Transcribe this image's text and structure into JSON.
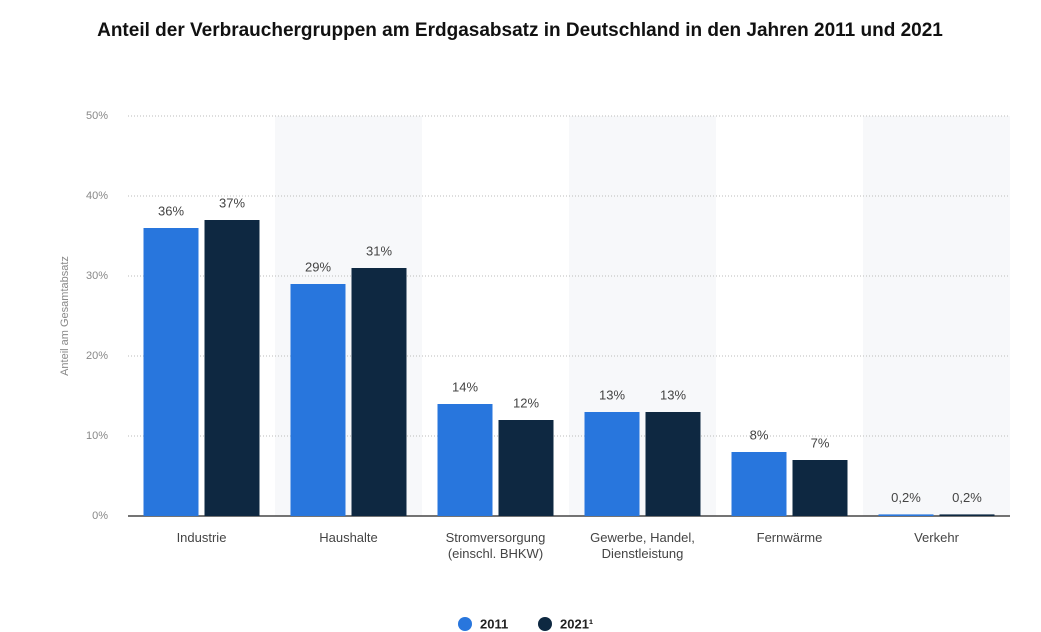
{
  "chart_data": {
    "type": "bar",
    "title": "Anteil der Verbrauchergruppen am Erdgasabsatz in Deutschland in den Jahren 2011 und 2021",
    "y_label": "Anteil am Gesamtabsatz",
    "categories": [
      "Industrie",
      "Haushalte",
      "Stromversorgung\n(einschl. BHKW)",
      "Gewerbe, Handel,\nDienstleistung",
      "Fernwärme",
      "Verkehr"
    ],
    "series": [
      {
        "name": "2011",
        "color": "#2876dd",
        "values": [
          36,
          29,
          14,
          13,
          8,
          0.2
        ],
        "value_labels": [
          "36%",
          "29%",
          "14%",
          "13%",
          "8%",
          "0,2%"
        ]
      },
      {
        "name": "2021¹",
        "color": "#0e2841",
        "values": [
          37,
          31,
          12,
          13,
          7,
          0.2
        ],
        "value_labels": [
          "37%",
          "31%",
          "12%",
          "13%",
          "7%",
          "0,2%"
        ]
      }
    ],
    "ylim": [
      0,
      50
    ],
    "yticks": [
      {
        "value": 0,
        "label": "0%"
      },
      {
        "value": 10,
        "label": "10%"
      },
      {
        "value": 20,
        "label": "20%"
      },
      {
        "value": 30,
        "label": "30%"
      },
      {
        "value": 40,
        "label": "40%"
      },
      {
        "value": 50,
        "label": "50%"
      }
    ],
    "grid": true,
    "legend": "bottom"
  }
}
